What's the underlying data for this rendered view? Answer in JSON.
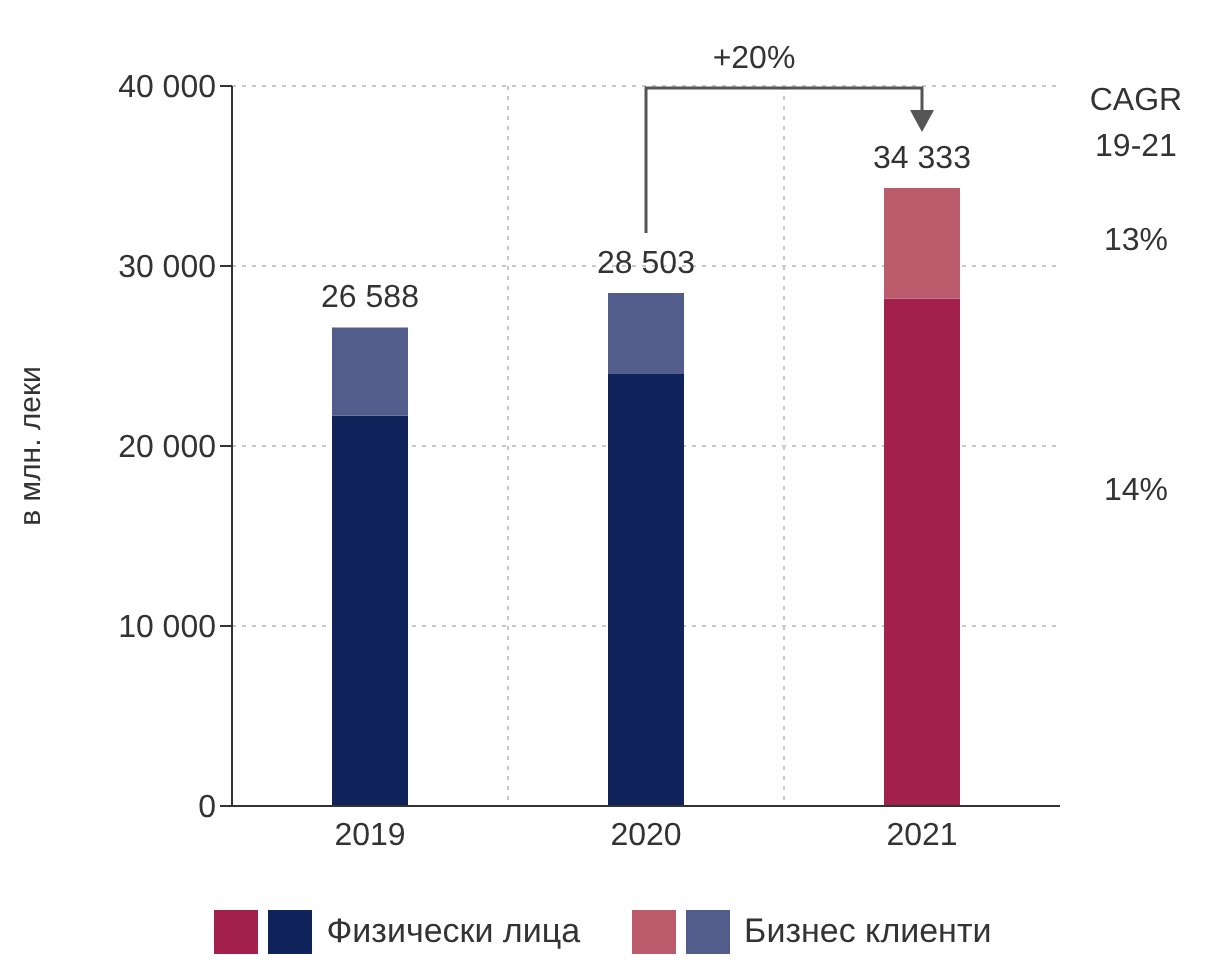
{
  "chart_data": {
    "type": "bar",
    "stacked": true,
    "categories": [
      "2019",
      "2020",
      "2021"
    ],
    "series": [
      {
        "name": "Физически лица",
        "colors": [
          "#10245b",
          "#10245b",
          "#a3204c"
        ],
        "values": [
          21700,
          24000,
          28200
        ]
      },
      {
        "name": "Бизнес клиенти",
        "colors": [
          "#525d8c",
          "#525d8c",
          "#bb5b6c"
        ],
        "values": [
          4888,
          4503,
          6133
        ]
      }
    ],
    "totals": [
      "26 588",
      "28 503",
      "34 333"
    ],
    "ylabel": "в млн. леки",
    "ylim": [
      0,
      40000
    ],
    "yticks": [
      {
        "value": 0,
        "label": "0"
      },
      {
        "value": 10000,
        "label": "10 000"
      },
      {
        "value": 20000,
        "label": "20 000"
      },
      {
        "value": 30000,
        "label": "30 000"
      },
      {
        "value": 40000,
        "label": "40 000"
      }
    ],
    "grid": true,
    "legend": "bottom",
    "annotations": [
      "+20%",
      "CAGR 19-21",
      "13%",
      "14%"
    ]
  }
}
